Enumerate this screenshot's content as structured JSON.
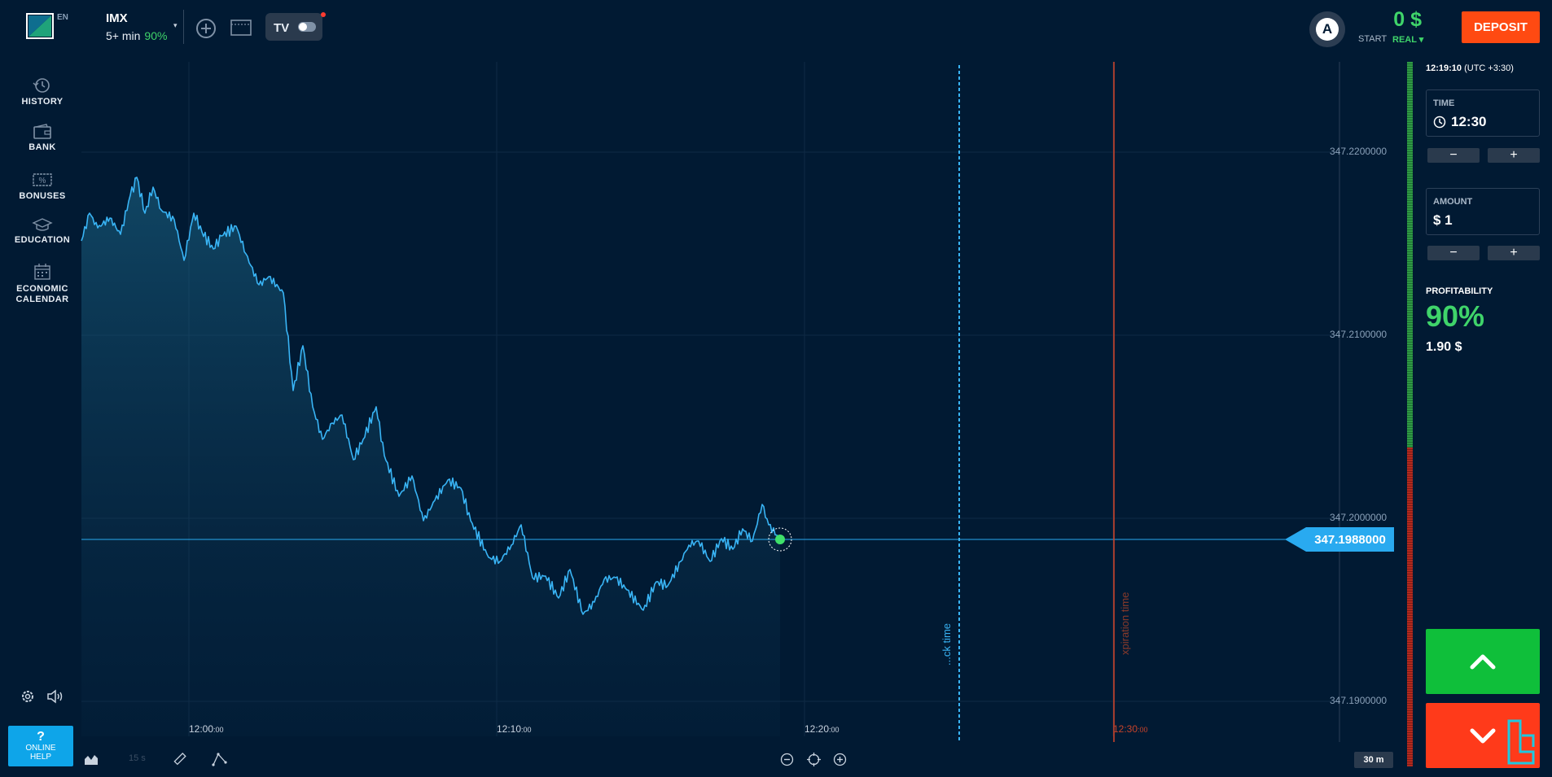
{
  "header": {
    "lang": "EN",
    "asset_name": "IMX",
    "asset_duration": "5+ min",
    "asset_payout": "90%",
    "asset_caret": "▾",
    "account": {
      "avatar_letter": "A",
      "balance": "0 $",
      "type_label": "START",
      "mode_label": "REAL ▾"
    },
    "deposit_label": "DEPOSIT"
  },
  "sidebar": {
    "items": [
      {
        "label": "HISTORY",
        "icon": "history-icon"
      },
      {
        "label": "BANK",
        "icon": "wallet-icon"
      },
      {
        "label": "BONUSES",
        "icon": "percent-ticket-icon"
      },
      {
        "label": "EDUCATION",
        "icon": "graduation-cap-icon"
      },
      {
        "label": "ECONOMIC",
        "label2": "CALENDAR",
        "icon": "calendar-icon"
      }
    ],
    "help_q": "?",
    "help_label_1": "ONLINE",
    "help_label_2": "HELP"
  },
  "chart": {
    "y_ticks": [
      "347.2200000",
      "347.2100000",
      "347.2000000",
      "347.1900000"
    ],
    "x_ticks": [
      {
        "main": "12:00",
        "sec": ":00"
      },
      {
        "main": "12:10",
        "sec": ":00"
      },
      {
        "main": "12:20",
        "sec": ":00"
      },
      {
        "main": "12:30",
        "sec": ":00"
      }
    ],
    "current_price": "347.1988000",
    "deadline_label": "...ck time",
    "expiration_label": "xpiration time",
    "timer_label": "15 s",
    "timeframe": "30 m",
    "colors": {
      "line": "#39b4f5",
      "price_tag": "#29aaf0",
      "expiration": "#c8432a"
    }
  },
  "trade": {
    "clock": "12:19:10",
    "timezone": "(UTC +3:30)",
    "time_label": "TIME",
    "time_value": "12:30",
    "amount_label": "AMOUNT",
    "amount_value": "$ 1",
    "minus": "−",
    "plus": "+",
    "profit_label": "PROFITABILITY",
    "profit_pct": "90%",
    "profit_amount": "1.90 $"
  }
}
